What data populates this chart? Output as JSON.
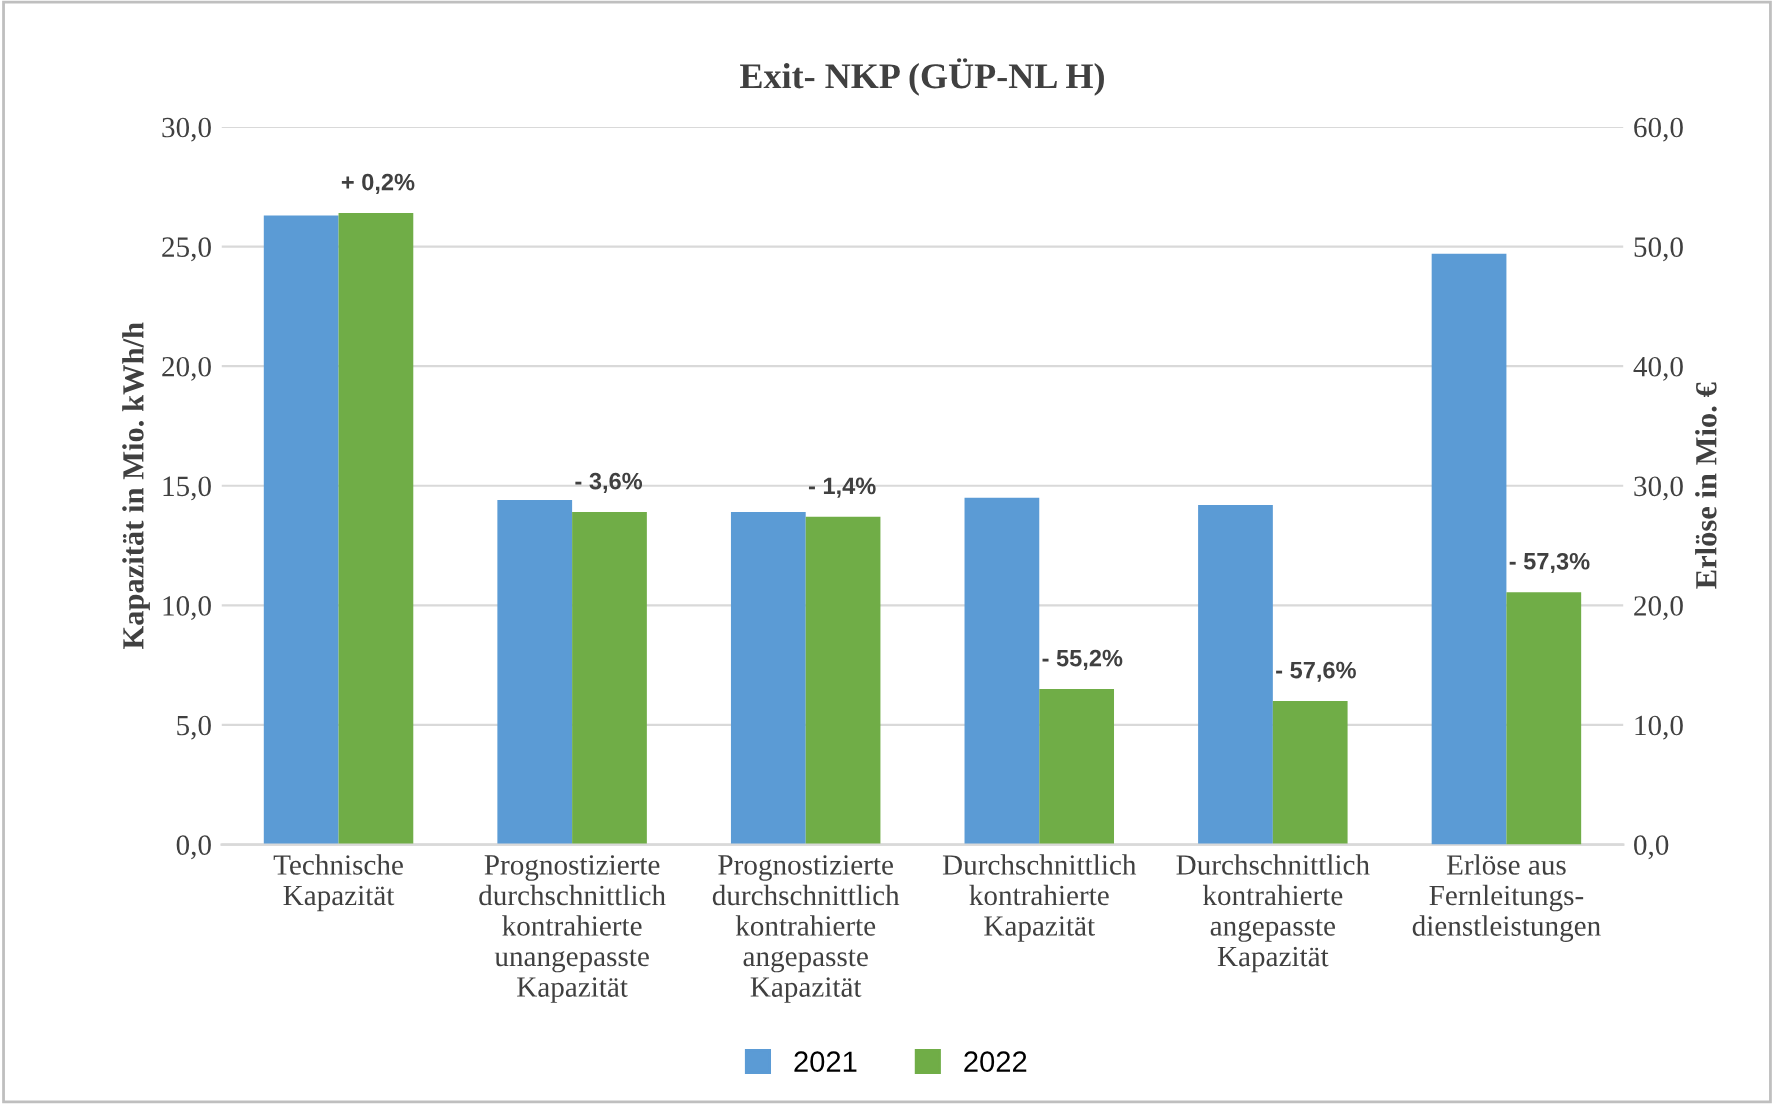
{
  "chart_data": {
    "type": "bar",
    "title": "Exit- NKP (GÜP-NL H)",
    "categories": [
      "Technische\nKapazität",
      "Prognostizierte\ndurchschnittlich\nkontrahierte\nunangepasste\nKapazität",
      "Prognostizierte\ndurchschnittlich\nkontrahierte\nangepasste\nKapazität",
      "Durchschnittlich\nkontrahierte\nKapazität",
      "Durchschnittlich\nkontrahierte\nangepasste\nKapazität",
      "Erlöse aus\nFernleitungs-\ndienstleistungen"
    ],
    "series": [
      {
        "name": "2021",
        "color": "#5b9bd5",
        "values": [
          26.3,
          14.4,
          13.9,
          14.5,
          14.2,
          null
        ]
      },
      {
        "name": "2022",
        "color": "#70ad47",
        "values": [
          26.4,
          13.9,
          13.7,
          6.5,
          6.0,
          null
        ]
      },
      {
        "color": "#5b9bd5",
        "axis": "y2",
        "values": [
          null,
          null,
          null,
          null,
          null,
          49.4
        ]
      },
      {
        "color": "#70ad47",
        "axis": "y2",
        "values": [
          null,
          null,
          null,
          null,
          null,
          21.1
        ]
      }
    ],
    "ylabel": "Kapazität in Mio. kWh/h",
    "y2label": "Erlöse in Mio. €",
    "ylim": [
      0,
      30
    ],
    "yticks": [
      {
        "value": 0,
        "label": "0,0"
      },
      {
        "value": 5,
        "label": "5,0"
      },
      {
        "value": 10,
        "label": "10,0"
      },
      {
        "value": 15,
        "label": "15,0"
      },
      {
        "value": 20,
        "label": "20,0"
      },
      {
        "value": 25,
        "label": "25,0"
      },
      {
        "value": 30,
        "label": "30,0"
      }
    ],
    "y2lim": [
      0,
      60
    ],
    "y2ticks": [
      {
        "value": 0,
        "label": "0,0"
      },
      {
        "value": 10,
        "label": "10,0"
      },
      {
        "value": 20,
        "label": "20,0"
      },
      {
        "value": 30,
        "label": "30,0"
      },
      {
        "value": 40,
        "label": "40,0"
      },
      {
        "value": 50,
        "label": "50,0"
      },
      {
        "value": 60,
        "label": "60,0"
      }
    ],
    "annotations": [
      "+ 0,2%",
      "- 3,6%",
      "- 1,4%",
      "- 55,2%",
      "- 57,6%",
      "- 57,3%"
    ],
    "grid": "y",
    "legend": "bottom"
  }
}
